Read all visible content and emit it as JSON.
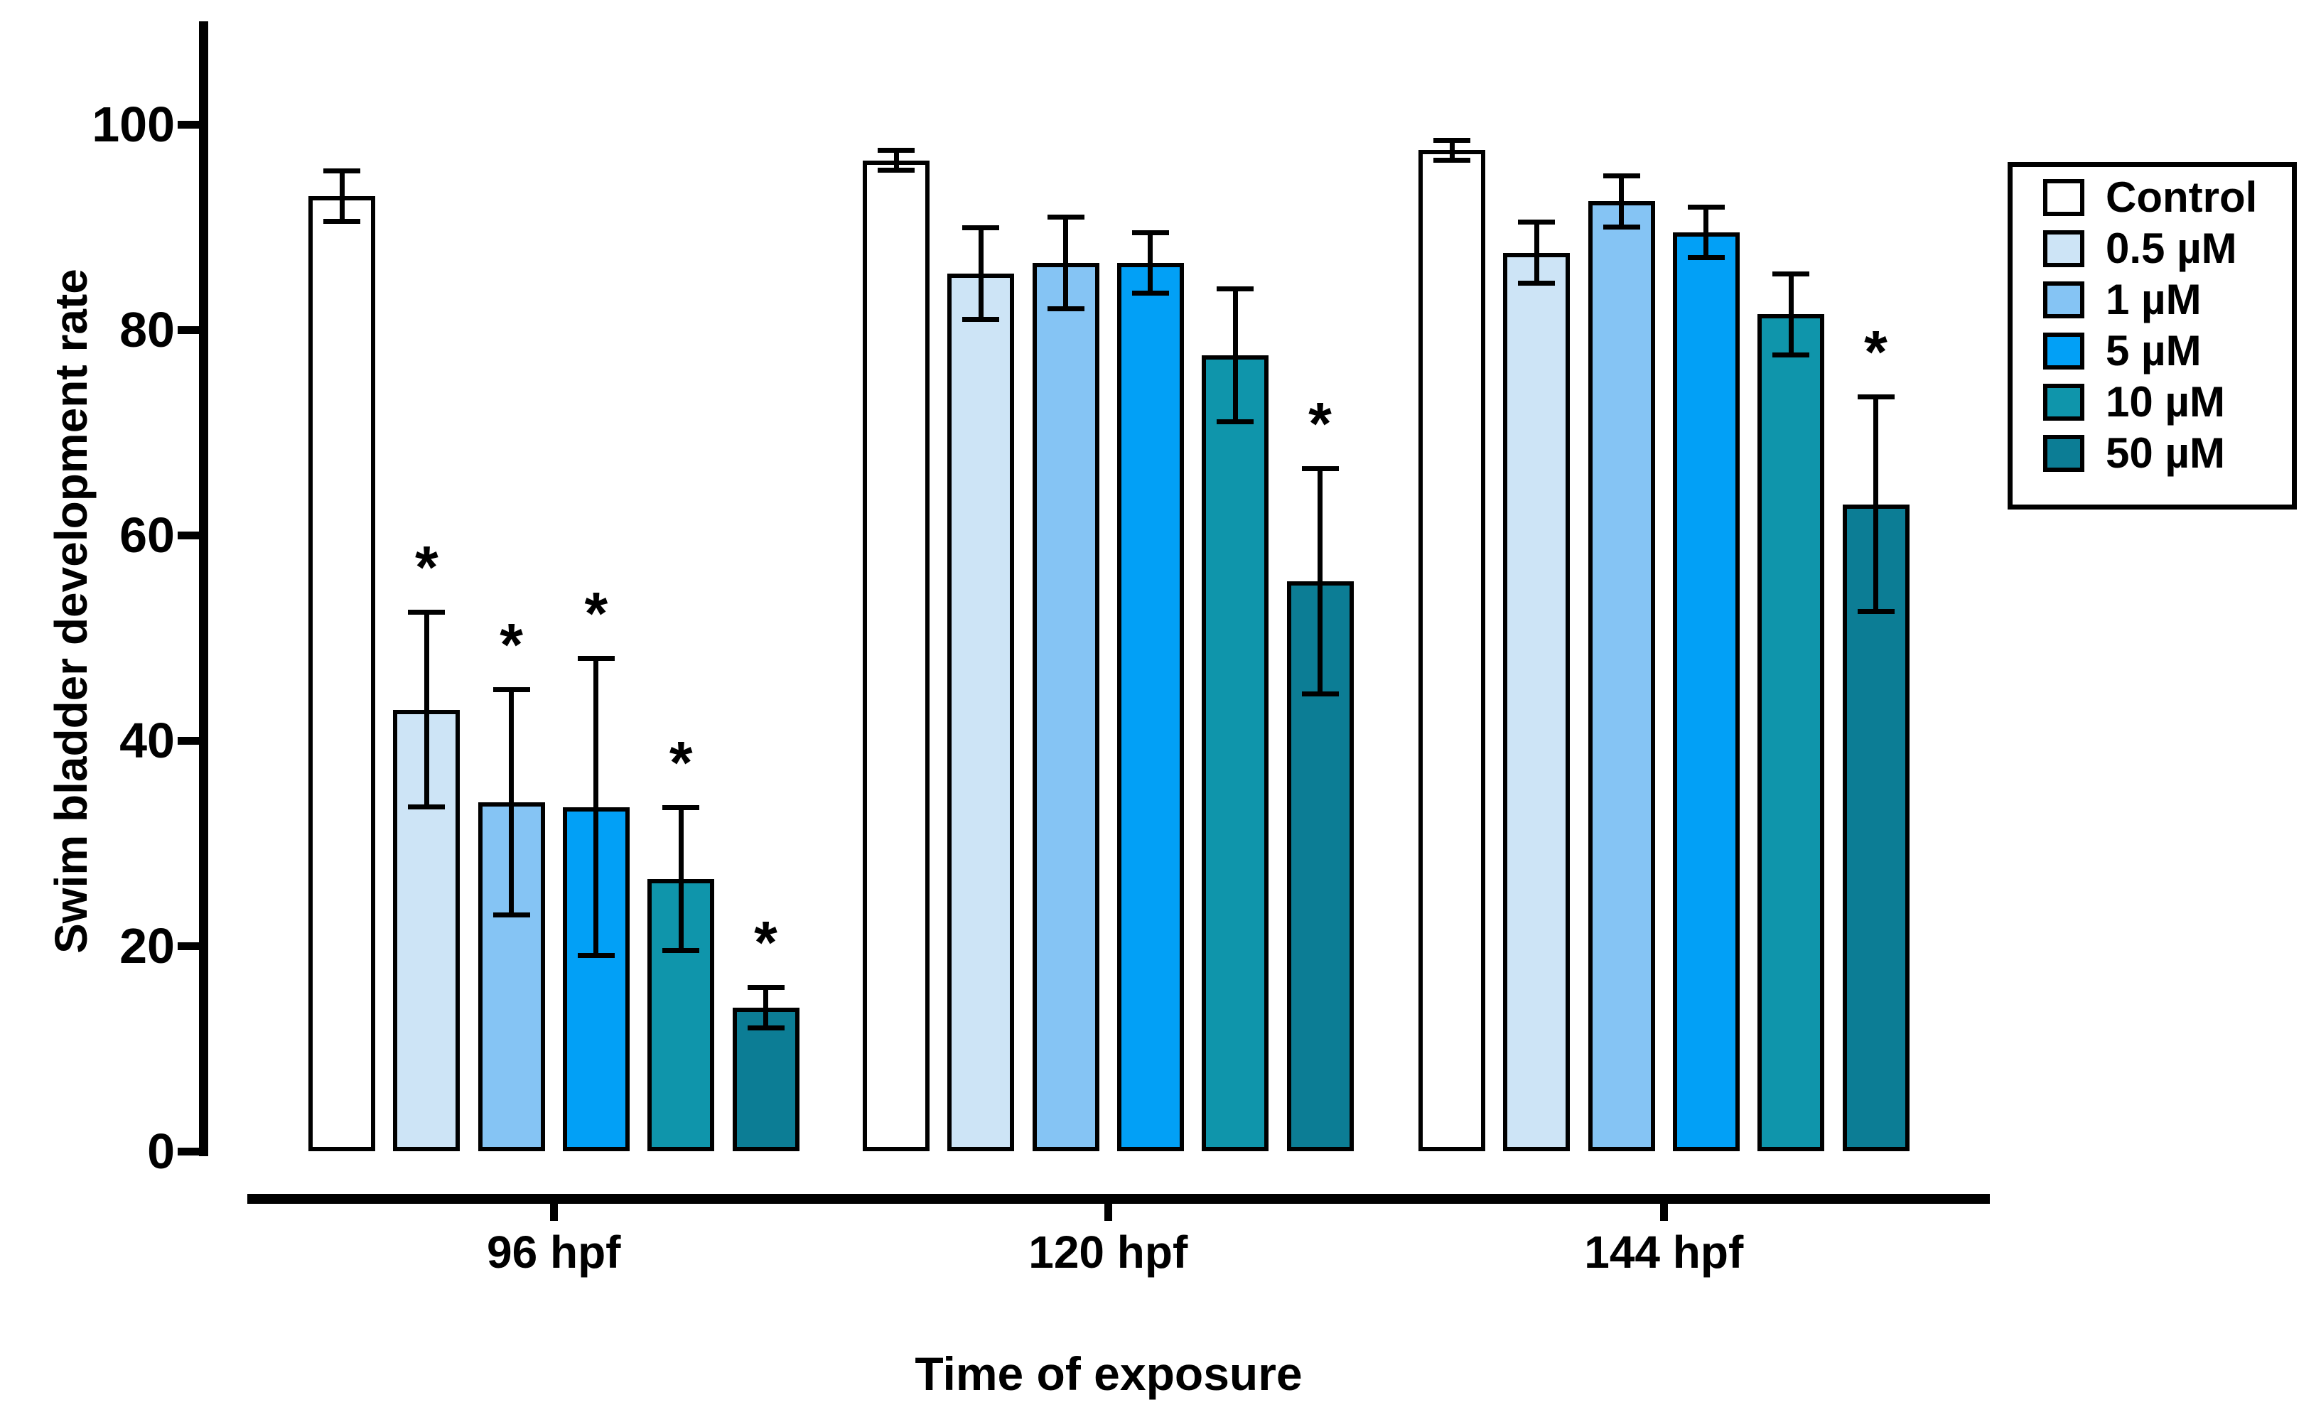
{
  "figure_background": "#ffffff",
  "y_axis": {
    "title": "Swim bladder development rate",
    "ticks": [
      0,
      20,
      40,
      60,
      80,
      100
    ]
  },
  "x_axis": {
    "title": "Time of exposure",
    "group_labels": [
      "96 hpf",
      "120 hpf",
      "144 hpf"
    ]
  },
  "legend": {
    "items": [
      {
        "label": "Control",
        "color": "#ffffff"
      },
      {
        "label": "0.5 µM",
        "color": "#cde4f6"
      },
      {
        "label": "1 µM",
        "color": "#85c4f4"
      },
      {
        "label": "5 µM",
        "color": "#02a0f6"
      },
      {
        "label": "10 µM",
        "color": "#0f95ab"
      },
      {
        "label": "50 µM",
        "color": "#0c7d95"
      }
    ]
  },
  "chart_data": {
    "type": "bar",
    "title": "",
    "xlabel": "Time of exposure",
    "ylabel": "Swim bladder development rate",
    "categories": [
      "96 hpf",
      "120 hpf",
      "144 hpf"
    ],
    "ylim": [
      0,
      110
    ],
    "grid": false,
    "legend_position": "right",
    "significance_marker": "*",
    "bar_outline_color": "#000000",
    "error_bar_style": "plus-minus-caps",
    "series": [
      {
        "name": "Control",
        "color": "#ffffff",
        "values": [
          93.0,
          96.5,
          97.5
        ],
        "errors": [
          2.5,
          1.0,
          1.0
        ],
        "significant": [
          false,
          false,
          false
        ]
      },
      {
        "name": "0.5 µM",
        "color": "#cde4f6",
        "values": [
          43.0,
          85.5,
          87.5
        ],
        "errors": [
          9.5,
          4.5,
          3.0
        ],
        "significant": [
          true,
          false,
          false
        ]
      },
      {
        "name": "1 µM",
        "color": "#85c4f4",
        "values": [
          34.0,
          86.5,
          92.5
        ],
        "errors": [
          11.0,
          4.5,
          2.5
        ],
        "significant": [
          true,
          false,
          false
        ]
      },
      {
        "name": "5 µM",
        "color": "#02a0f6",
        "values": [
          33.5,
          86.5,
          89.5
        ],
        "errors": [
          14.5,
          3.0,
          2.5
        ],
        "significant": [
          true,
          false,
          false
        ]
      },
      {
        "name": "10 µM",
        "color": "#0f95ab",
        "values": [
          26.5,
          77.5,
          81.5
        ],
        "errors": [
          7.0,
          6.5,
          4.0
        ],
        "significant": [
          true,
          false,
          false
        ]
      },
      {
        "name": "50 µM",
        "color": "#0c7d95",
        "values": [
          14.0,
          55.5,
          63.0
        ],
        "errors": [
          2.0,
          11.0,
          10.5
        ],
        "significant": [
          true,
          true,
          true
        ]
      }
    ]
  }
}
